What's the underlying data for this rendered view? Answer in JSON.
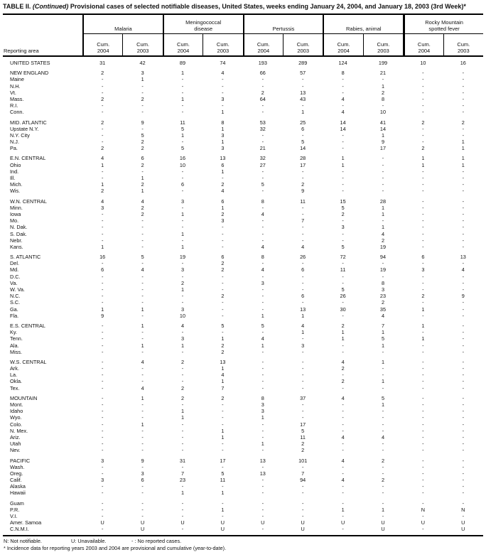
{
  "title": {
    "prefix": "TABLE II. ",
    "continued": "(Continued)",
    "rest": " Provisional cases of selected notifiable diseases, United States, weeks ending January 24, 2004, and January 18, 2003 (3rd Week)*"
  },
  "header": {
    "reporting_area_label": "Reporting area",
    "groups": [
      "Malaria",
      "Meningococcal\ndisease",
      "Pertussis",
      "Rabies, animal",
      "Rocky Mountain\nspotted fever"
    ],
    "sub_label": "Cum.",
    "sub_years": [
      "2004",
      "2003"
    ]
  },
  "sections": [
    {
      "rows": [
        [
          "UNITED STATES",
          "31",
          "42",
          "89",
          "74",
          "193",
          "289",
          "124",
          "199",
          "10",
          "16"
        ]
      ]
    },
    {
      "rows": [
        [
          "NEW ENGLAND",
          "2",
          "3",
          "1",
          "4",
          "66",
          "57",
          "8",
          "21",
          "-",
          "-"
        ],
        [
          "Maine",
          "-",
          "1",
          "-",
          "-",
          "-",
          "-",
          "-",
          "-",
          "-",
          "-"
        ],
        [
          "N.H.",
          "-",
          "-",
          "-",
          "-",
          "-",
          "-",
          "-",
          "1",
          "-",
          "-"
        ],
        [
          "Vt.",
          "-",
          "-",
          "-",
          "-",
          "2",
          "13",
          "-",
          "2",
          "-",
          "-"
        ],
        [
          "Mass.",
          "2",
          "2",
          "1",
          "3",
          "64",
          "43",
          "4",
          "8",
          "-",
          "-"
        ],
        [
          "R.I.",
          "-",
          "-",
          "-",
          "-",
          "-",
          "-",
          "-",
          "-",
          "-",
          "-"
        ],
        [
          "Conn.",
          "-",
          "-",
          "-",
          "1",
          "-",
          "1",
          "4",
          "10",
          "-",
          "-"
        ]
      ]
    },
    {
      "rows": [
        [
          "MID. ATLANTIC",
          "2",
          "9",
          "11",
          "8",
          "53",
          "25",
          "14",
          "41",
          "2",
          "2"
        ],
        [
          "Upstate N.Y.",
          "-",
          "-",
          "5",
          "1",
          "32",
          "6",
          "14",
          "14",
          "-",
          "-"
        ],
        [
          "N.Y. City",
          "-",
          "5",
          "1",
          "3",
          "-",
          "-",
          "-",
          "1",
          "-",
          "-"
        ],
        [
          "N.J.",
          "-",
          "2",
          "-",
          "1",
          "-",
          "5",
          "-",
          "9",
          "-",
          "1"
        ],
        [
          "Pa.",
          "2",
          "2",
          "5",
          "3",
          "21",
          "14",
          "-",
          "17",
          "2",
          "1"
        ]
      ]
    },
    {
      "rows": [
        [
          "E.N. CENTRAL",
          "4",
          "6",
          "16",
          "13",
          "32",
          "28",
          "1",
          "-",
          "1",
          "1"
        ],
        [
          "Ohio",
          "1",
          "2",
          "10",
          "6",
          "27",
          "17",
          "1",
          "-",
          "1",
          "1"
        ],
        [
          "Ind.",
          "-",
          "-",
          "-",
          "1",
          "-",
          "-",
          "-",
          "-",
          "-",
          "-"
        ],
        [
          "Ill.",
          "-",
          "1",
          "-",
          "-",
          "-",
          "-",
          "-",
          "-",
          "-",
          "-"
        ],
        [
          "Mich.",
          "1",
          "2",
          "6",
          "2",
          "5",
          "2",
          "-",
          "-",
          "-",
          "-"
        ],
        [
          "Wis.",
          "2",
          "1",
          "-",
          "4",
          "-",
          "9",
          "-",
          "-",
          "-",
          "-"
        ]
      ]
    },
    {
      "rows": [
        [
          "W.N. CENTRAL",
          "4",
          "4",
          "3",
          "6",
          "8",
          "11",
          "15",
          "28",
          "-",
          "-"
        ],
        [
          "Minn.",
          "3",
          "2",
          "-",
          "1",
          "-",
          "-",
          "5",
          "1",
          "-",
          "-"
        ],
        [
          "Iowa",
          "-",
          "2",
          "1",
          "2",
          "4",
          "-",
          "2",
          "1",
          "-",
          "-"
        ],
        [
          "Mo.",
          "-",
          "-",
          "-",
          "3",
          "-",
          "7",
          "-",
          "-",
          "-",
          "-"
        ],
        [
          "N. Dak.",
          "-",
          "-",
          "-",
          "-",
          "-",
          "-",
          "3",
          "1",
          "-",
          "-"
        ],
        [
          "S. Dak.",
          "-",
          "-",
          "1",
          "-",
          "-",
          "-",
          "-",
          "4",
          "-",
          "-"
        ],
        [
          "Nebr.",
          "-",
          "-",
          "-",
          "-",
          "-",
          "-",
          "-",
          "2",
          "-",
          "-"
        ],
        [
          "Kans.",
          "1",
          "-",
          "1",
          "-",
          "4",
          "4",
          "5",
          "19",
          "-",
          "-"
        ]
      ]
    },
    {
      "rows": [
        [
          "S. ATLANTIC",
          "16",
          "5",
          "19",
          "6",
          "8",
          "26",
          "72",
          "94",
          "6",
          "13"
        ],
        [
          "Del.",
          "-",
          "-",
          "-",
          "2",
          "-",
          "-",
          "-",
          "-",
          "-",
          "-"
        ],
        [
          "Md.",
          "6",
          "4",
          "3",
          "2",
          "4",
          "6",
          "11",
          "19",
          "3",
          "4"
        ],
        [
          "D.C.",
          "-",
          "-",
          "-",
          "-",
          "-",
          "-",
          "-",
          "-",
          "-",
          "-"
        ],
        [
          "Va.",
          "-",
          "-",
          "2",
          "-",
          "3",
          "-",
          "-",
          "8",
          "-",
          "-"
        ],
        [
          "W. Va.",
          "-",
          "-",
          "1",
          "-",
          "-",
          "-",
          "5",
          "3",
          "-",
          "-"
        ],
        [
          "N.C.",
          "-",
          "-",
          "-",
          "2",
          "-",
          "6",
          "26",
          "23",
          "2",
          "9"
        ],
        [
          "S.C.",
          "-",
          "-",
          "-",
          "-",
          "-",
          "-",
          "-",
          "2",
          "-",
          "-"
        ],
        [
          "Ga.",
          "1",
          "1",
          "3",
          "-",
          "-",
          "13",
          "30",
          "35",
          "1",
          "-"
        ],
        [
          "Fla.",
          "9",
          "-",
          "10",
          "-",
          "1",
          "1",
          "-",
          "4",
          "-",
          "-"
        ]
      ]
    },
    {
      "rows": [
        [
          "E.S. CENTRAL",
          "-",
          "1",
          "4",
          "5",
          "5",
          "4",
          "2",
          "7",
          "1",
          "-"
        ],
        [
          "Ky.",
          "-",
          "-",
          "-",
          "-",
          "-",
          "1",
          "1",
          "1",
          "-",
          "-"
        ],
        [
          "Tenn.",
          "-",
          "-",
          "3",
          "1",
          "4",
          "-",
          "1",
          "5",
          "1",
          "-"
        ],
        [
          "Ala.",
          "-",
          "1",
          "1",
          "2",
          "1",
          "3",
          "-",
          "1",
          "-",
          "-"
        ],
        [
          "Miss.",
          "-",
          "-",
          "-",
          "2",
          "-",
          "-",
          "-",
          "-",
          "-",
          "-"
        ]
      ]
    },
    {
      "rows": [
        [
          "W.S. CENTRAL",
          "-",
          "4",
          "2",
          "13",
          "-",
          "-",
          "4",
          "1",
          "-",
          "-"
        ],
        [
          "Ark.",
          "-",
          "-",
          "-",
          "1",
          "-",
          "-",
          "2",
          "-",
          "-",
          "-"
        ],
        [
          "La.",
          "-",
          "-",
          "-",
          "4",
          "-",
          "-",
          "-",
          "-",
          "-",
          "-"
        ],
        [
          "Okla.",
          "-",
          "-",
          "-",
          "1",
          "-",
          "-",
          "2",
          "1",
          "-",
          "-"
        ],
        [
          "Tex.",
          "-",
          "4",
          "2",
          "7",
          "-",
          "-",
          "-",
          "-",
          "-",
          "-"
        ]
      ]
    },
    {
      "rows": [
        [
          "MOUNTAIN",
          "-",
          "1",
          "2",
          "2",
          "8",
          "37",
          "4",
          "5",
          "-",
          "-"
        ],
        [
          "Mont.",
          "-",
          "-",
          "-",
          "-",
          "3",
          "-",
          "-",
          "1",
          "-",
          "-"
        ],
        [
          "Idaho",
          "-",
          "-",
          "1",
          "-",
          "3",
          "-",
          "-",
          "-",
          "-",
          "-"
        ],
        [
          "Wyo.",
          "-",
          "-",
          "1",
          "-",
          "1",
          "-",
          "-",
          "-",
          "-",
          "-"
        ],
        [
          "Colo.",
          "-",
          "1",
          "-",
          "-",
          "-",
          "17",
          "-",
          "-",
          "-",
          "-"
        ],
        [
          "N. Mex.",
          "-",
          "-",
          "-",
          "1",
          "-",
          "5",
          "-",
          "-",
          "-",
          "-"
        ],
        [
          "Ariz.",
          "-",
          "-",
          "-",
          "1",
          "-",
          "11",
          "4",
          "4",
          "-",
          "-"
        ],
        [
          "Utah",
          "-",
          "-",
          "-",
          "-",
          "1",
          "2",
          "-",
          "-",
          "-",
          "-"
        ],
        [
          "Nev.",
          "-",
          "-",
          "-",
          "-",
          "-",
          "2",
          "-",
          "-",
          "-",
          "-"
        ]
      ]
    },
    {
      "rows": [
        [
          "PACIFIC",
          "3",
          "9",
          "31",
          "17",
          "13",
          "101",
          "4",
          "2",
          "-",
          "-"
        ],
        [
          "Wash.",
          "-",
          "-",
          "-",
          "-",
          "-",
          "-",
          "-",
          "-",
          "-",
          "-"
        ],
        [
          "Oreg.",
          "-",
          "3",
          "7",
          "5",
          "13",
          "7",
          "-",
          "-",
          "-",
          "-"
        ],
        [
          "Calif.",
          "3",
          "6",
          "23",
          "11",
          "-",
          "94",
          "4",
          "2",
          "-",
          "-"
        ],
        [
          "Alaska",
          "-",
          "-",
          "-",
          "-",
          "-",
          "-",
          "-",
          "-",
          "-",
          "-"
        ],
        [
          "Hawaii",
          "-",
          "-",
          "1",
          "1",
          "-",
          "-",
          "-",
          "-",
          "-",
          "-"
        ]
      ]
    },
    {
      "rows": [
        [
          "Guam",
          "-",
          "-",
          "-",
          "-",
          "-",
          "-",
          "-",
          "-",
          "-",
          "-"
        ],
        [
          "P.R.",
          "-",
          "-",
          "-",
          "1",
          "-",
          "-",
          "1",
          "1",
          "N",
          "N"
        ],
        [
          "V.I.",
          "-",
          "-",
          "-",
          "-",
          "-",
          "-",
          "-",
          "-",
          "-",
          "-"
        ],
        [
          "Amer. Samoa",
          "U",
          "U",
          "U",
          "U",
          "U",
          "U",
          "U",
          "U",
          "U",
          "U"
        ],
        [
          "C.N.M.I.",
          "-",
          "U",
          "-",
          "U",
          "-",
          "U",
          "-",
          "U",
          "-",
          "U"
        ]
      ]
    }
  ],
  "footnotes": {
    "legend": [
      "N: Not notifiable.",
      "U: Unavailable.",
      "- : No reported cases."
    ],
    "note": "* Incidence data for reporting years 2003 and 2004 are provisional and cumulative (year-to-date)."
  }
}
